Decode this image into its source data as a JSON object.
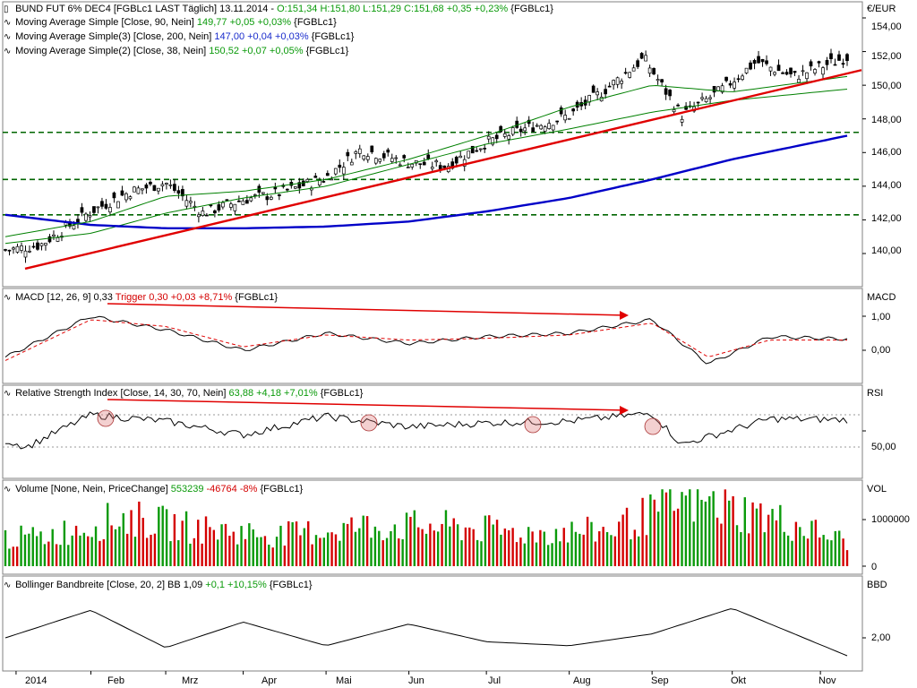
{
  "colors": {
    "up_candle": "#008000",
    "down_candle": "#d40000",
    "ma90": "#008000",
    "ma200": "#0000c8",
    "ma38": "#008000",
    "trend": "#e00000",
    "support": "#006400",
    "macd": "#000000",
    "trigger": "#e00000",
    "rsi": "#000000",
    "vol_up": "#0a9a0a",
    "vol_down": "#d40000",
    "bbw": "#000000",
    "panel_border": "#808080"
  },
  "headers": {
    "main": {
      "title": "BUND FUT 6% DEC4 [FGBLc1 LAST Täglich] 13.11.2014",
      "ohlc": "O:151,34 H:151,80 L:151,29 C:151,68 +0,35 +0,23%",
      "sym": "{FGBLc1}"
    },
    "ma1": {
      "label": "Moving Average Simple [Close, 90, Nein]",
      "value": "149,77 +0,05 +0,03%",
      "sym": "{FGBLc1}"
    },
    "ma2": {
      "label": "Moving Average Simple(3) [Close, 200, Nein]",
      "value": "147,00 +0,04 +0,03%",
      "sym": "{FGBLc1}"
    },
    "ma3": {
      "label": "Moving Average Simple(2) [Close, 38, Nein]",
      "value": "150,52 +0,07 +0,05%",
      "sym": "{FGBLc1}"
    },
    "macd": {
      "label": "MACD [12, 26, 9] 0,33",
      "trigger": "Trigger 0,30 +0,03 +8,71%",
      "sym": "{FGBLc1}"
    },
    "rsi": {
      "label": "Relative Strength Index [Close, 14, 30, 70, Nein]",
      "value": "63,88 +4,18 +7,01%",
      "sym": "{FGBLc1}"
    },
    "vol": {
      "label": "Volume [None, Nein, PriceChange]",
      "value": "553239",
      "change": "-46764 -8%",
      "sym": "{FGBLc1}"
    },
    "bb": {
      "label": "Bollinger Bandbreite [Close, 20, 2] BB 1,09",
      "value": "+0,1 +10,15%",
      "sym": "{FGBLc1}"
    }
  },
  "axes": {
    "price": {
      "unit": "€/EUR",
      "ticks": [
        "154,00",
        "152,00",
        "150,00",
        "148,00",
        "146,00",
        "144,00",
        "142,00",
        "140,00"
      ],
      "ylim": [
        138,
        155
      ]
    },
    "macd": {
      "unit": "MACD",
      "ticks": [
        "1,00",
        "0,00"
      ]
    },
    "rsi": {
      "unit": "RSI",
      "ticks": [
        "50,00"
      ]
    },
    "vol": {
      "unit": "VOL",
      "ticks": [
        "1000000",
        "0"
      ]
    },
    "bbw": {
      "unit": "BBD",
      "ticks": [
        "2,00"
      ]
    },
    "x": [
      "2014",
      "Feb",
      "Mrz",
      "Apr",
      "Mai",
      "Jun",
      "Jul",
      "Aug",
      "Sep",
      "Okt",
      "Nov"
    ]
  },
  "chart_data": [
    {
      "type": "line",
      "title": "BUND FUT 6% DEC4 [FGBLc1 LAST Täglich] 13.11.2014",
      "ylabel": "€/EUR",
      "ylim": [
        138,
        155
      ],
      "series": [
        {
          "name": "Close (Candlestick)",
          "x": [
            "2014-01-02",
            "2014-01-15",
            "2014-02-03",
            "2014-02-18",
            "2014-03-03",
            "2014-03-17",
            "2014-04-01",
            "2014-04-15",
            "2014-05-02",
            "2014-05-15",
            "2014-06-02",
            "2014-06-16",
            "2014-07-01",
            "2014-07-15",
            "2014-08-01",
            "2014-08-15",
            "2014-08-29",
            "2014-09-12",
            "2014-09-26",
            "2014-10-10",
            "2014-10-24",
            "2014-11-13"
          ],
          "values": [
            140.2,
            140.5,
            142.5,
            143.7,
            144.2,
            142.4,
            143.2,
            143.6,
            144.5,
            146.2,
            145.4,
            145.2,
            146.6,
            147.4,
            148.2,
            149.8,
            151.6,
            148.2,
            149.6,
            151.4,
            150.5,
            151.68
          ]
        },
        {
          "name": "Moving Average Simple [Close, 90, Nein]",
          "x": [
            "2014-01-02",
            "2014-02-03",
            "2014-03-03",
            "2014-04-01",
            "2014-05-02",
            "2014-06-02",
            "2014-07-01",
            "2014-08-01",
            "2014-09-01",
            "2014-10-01",
            "2014-11-13"
          ],
          "values": [
            140.6,
            141.2,
            142.4,
            143.3,
            144.0,
            145.3,
            146.5,
            147.4,
            148.4,
            149.1,
            149.77
          ]
        },
        {
          "name": "Moving Average Simple(3) [Close, 200, Nein]",
          "x": [
            "2014-01-02",
            "2014-02-03",
            "2014-03-03",
            "2014-04-01",
            "2014-05-02",
            "2014-06-02",
            "2014-07-01",
            "2014-08-01",
            "2014-09-01",
            "2014-10-01",
            "2014-11-13"
          ],
          "values": [
            142.3,
            141.7,
            141.5,
            141.5,
            141.6,
            141.9,
            142.5,
            143.3,
            144.4,
            145.6,
            147.0
          ]
        },
        {
          "name": "Moving Average Simple(2) [Close, 38, Nein]",
          "x": [
            "2014-01-02",
            "2014-02-03",
            "2014-03-03",
            "2014-04-01",
            "2014-05-02",
            "2014-06-02",
            "2014-07-01",
            "2014-08-01",
            "2014-09-01",
            "2014-10-01",
            "2014-11-13"
          ],
          "values": [
            141.0,
            141.9,
            143.4,
            143.7,
            144.4,
            145.6,
            147.0,
            148.7,
            150.0,
            149.6,
            150.52
          ]
        }
      ]
    },
    {
      "type": "line",
      "title": "MACD [12, 26, 9]",
      "series": [
        {
          "name": "MACD",
          "x": [
            "2014-01-02",
            "2014-02-03",
            "2014-03-03",
            "2014-04-01",
            "2014-05-02",
            "2014-06-02",
            "2014-07-01",
            "2014-08-01",
            "2014-09-01",
            "2014-09-22",
            "2014-10-15",
            "2014-11-13"
          ],
          "values": [
            -0.2,
            1.0,
            0.6,
            0.0,
            0.5,
            0.2,
            0.4,
            0.5,
            0.9,
            -0.4,
            0.4,
            0.33
          ]
        },
        {
          "name": "Trigger",
          "x": [
            "2014-01-02",
            "2014-02-03",
            "2014-03-03",
            "2014-04-01",
            "2014-05-02",
            "2014-06-02",
            "2014-07-01",
            "2014-08-01",
            "2014-09-01",
            "2014-09-22",
            "2014-10-15",
            "2014-11-13"
          ],
          "values": [
            -0.3,
            0.9,
            0.7,
            0.1,
            0.45,
            0.3,
            0.35,
            0.45,
            0.8,
            -0.2,
            0.3,
            0.3
          ]
        }
      ]
    },
    {
      "type": "line",
      "title": "Relative Strength Index [Close, 14, 30, 70, Nein]",
      "ylim": [
        0,
        100
      ],
      "series": [
        {
          "name": "RSI",
          "x": [
            "2014-01-02",
            "2014-01-10",
            "2014-02-03",
            "2014-03-03",
            "2014-04-01",
            "2014-05-02",
            "2014-06-02",
            "2014-07-01",
            "2014-08-01",
            "2014-09-01",
            "2014-09-12",
            "2014-10-15",
            "2014-11-13"
          ],
          "values": [
            38,
            30,
            70,
            62,
            45,
            68,
            55,
            60,
            62,
            72,
            33,
            65,
            63.88
          ]
        }
      ]
    },
    {
      "type": "bar",
      "title": "Volume [None, Nein, PriceChange]",
      "ylim": [
        0,
        1600000
      ],
      "series": [
        {
          "name": "Volume",
          "x": [
            "2014-01",
            "2014-02",
            "2014-03",
            "2014-04",
            "2014-05",
            "2014-06",
            "2014-07",
            "2014-08",
            "2014-09",
            "2014-10",
            "2014-11-13"
          ],
          "values": [
            650000,
            1100000,
            850000,
            700000,
            900000,
            900000,
            750000,
            800000,
            1500000,
            1100000,
            553239
          ]
        }
      ]
    },
    {
      "type": "line",
      "title": "Bollinger Bandbreite [Close, 20, 2]",
      "series": [
        {
          "name": "BB",
          "x": [
            "2014-01-02",
            "2014-02-03",
            "2014-03-03",
            "2014-04-01",
            "2014-05-02",
            "2014-06-02",
            "2014-07-01",
            "2014-08-01",
            "2014-09-01",
            "2014-10-01",
            "2014-11-13"
          ],
          "values": [
            2.0,
            3.4,
            1.5,
            2.8,
            1.6,
            2.7,
            1.8,
            1.6,
            2.2,
            3.5,
            1.09
          ]
        }
      ]
    }
  ]
}
